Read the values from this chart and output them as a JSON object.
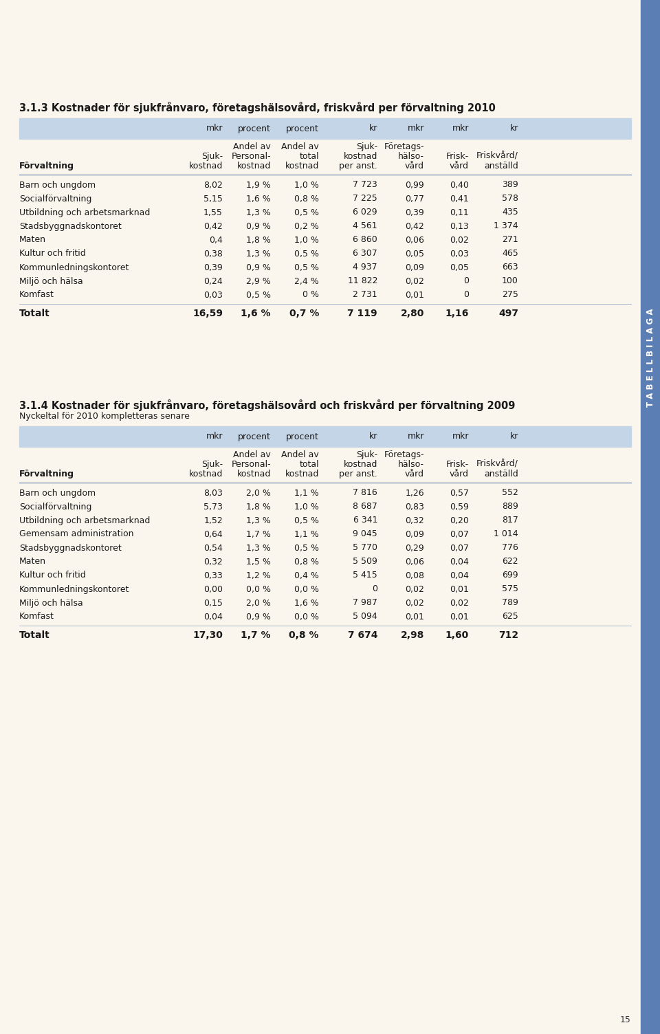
{
  "bg_color": "#FAF6EE",
  "sidebar_color": "#5B7EB5",
  "sidebar_text": "T A B E L L B I L A G A",
  "sidebar_text_color": "#FFFFFF",
  "page_number": "15",
  "table1_title": "3.1.3 Kostnader för sjukfrånvaro, företagshälsovård, friskvård per förvaltning 2010",
  "table1_header_bg": "#C5D5E8",
  "table1_col_units": [
    "mkr",
    "procent",
    "procent",
    "kr",
    "mkr",
    "mkr",
    "kr"
  ],
  "table1_col_sub1": [
    "",
    "Andel av",
    "Andel av",
    "Sjuk-",
    "Företags-",
    "",
    ""
  ],
  "table1_col_sub2": [
    "Sjuk-",
    "Personal-",
    "total",
    "kostnad",
    "hälso-",
    "Frisk-",
    "Friskvård/"
  ],
  "table1_col_sub3": [
    "kostnad",
    "kostnad",
    "kostnad",
    "per anst.",
    "vård",
    "vård",
    "anställd"
  ],
  "table1_col_label": "Förvaltning",
  "table1_rows": [
    [
      "Barn och ungdom",
      "8,02",
      "1,9 %",
      "1,0 %",
      "7 723",
      "0,99",
      "0,40",
      "389"
    ],
    [
      "Socialförvaltning",
      "5,15",
      "1,6 %",
      "0,8 %",
      "7 225",
      "0,77",
      "0,41",
      "578"
    ],
    [
      "Utbildning och arbetsmarknad",
      "1,55",
      "1,3 %",
      "0,5 %",
      "6 029",
      "0,39",
      "0,11",
      "435"
    ],
    [
      "Stadsbyggnadskontoret",
      "0,42",
      "0,9 %",
      "0,2 %",
      "4 561",
      "0,42",
      "0,13",
      "1 374"
    ],
    [
      "Maten",
      "0,4",
      "1,8 %",
      "1,0 %",
      "6 860",
      "0,06",
      "0,02",
      "271"
    ],
    [
      "Kultur och fritid",
      "0,38",
      "1,3 %",
      "0,5 %",
      "6 307",
      "0,05",
      "0,03",
      "465"
    ],
    [
      "Kommunledningskontoret",
      "0,39",
      "0,9 %",
      "0,5 %",
      "4 937",
      "0,09",
      "0,05",
      "663"
    ],
    [
      "Miljö och hälsa",
      "0,24",
      "2,9 %",
      "2,4 %",
      "11 822",
      "0,02",
      "0",
      "100"
    ],
    [
      "Komfast",
      "0,03",
      "0,5 %",
      "0 %",
      "2 731",
      "0,01",
      "0",
      "275"
    ]
  ],
  "table1_total": [
    "Totalt",
    "16,59",
    "1,6 %",
    "0,7 %",
    "7 119",
    "2,80",
    "1,16",
    "497"
  ],
  "table2_title": "3.1.4 Kostnader för sjukfrånvaro, företagshälsovård och friskvård per förvaltning 2009",
  "table2_subtitle": "Nyckeltal för 2010 kompletteras senare",
  "table2_col_units": [
    "mkr",
    "procent",
    "procent",
    "kr",
    "mkr",
    "mkr",
    "kr"
  ],
  "table2_col_sub1": [
    "",
    "Andel av",
    "Andel av",
    "Sjuk-",
    "Företags-",
    "",
    ""
  ],
  "table2_col_sub2": [
    "Sjuk-",
    "Personal-",
    "total",
    "kostnad",
    "hälso-",
    "Frisk-",
    "Friskvård/"
  ],
  "table2_col_sub3": [
    "kostnad",
    "kostnad",
    "kostnad",
    "per anst.",
    "vård",
    "vård",
    "anställd"
  ],
  "table2_col_label": "Förvaltning",
  "table2_rows": [
    [
      "Barn och ungdom",
      "8,03",
      "2,0 %",
      "1,1 %",
      "7 816",
      "1,26",
      "0,57",
      "552"
    ],
    [
      "Socialförvaltning",
      "5,73",
      "1,8 %",
      "1,0 %",
      "8 687",
      "0,83",
      "0,59",
      "889"
    ],
    [
      "Utbildning och arbetsmarknad",
      "1,52",
      "1,3 %",
      "0,5 %",
      "6 341",
      "0,32",
      "0,20",
      "817"
    ],
    [
      "Gemensam administration",
      "0,64",
      "1,7 %",
      "1,1 %",
      "9 045",
      "0,09",
      "0,07",
      "1 014"
    ],
    [
      "Stadsbyggnadskontoret",
      "0,54",
      "1,3 %",
      "0,5 %",
      "5 770",
      "0,29",
      "0,07",
      "776"
    ],
    [
      "Maten",
      "0,32",
      "1,5 %",
      "0,8 %",
      "5 509",
      "0,06",
      "0,04",
      "622"
    ],
    [
      "Kultur och fritid",
      "0,33",
      "1,2 %",
      "0,4 %",
      "5 415",
      "0,08",
      "0,04",
      "699"
    ],
    [
      "Kommunledningskontoret",
      "0,00",
      "0,0 %",
      "0,0 %",
      "0",
      "0,02",
      "0,01",
      "575"
    ],
    [
      "Miljö och hälsa",
      "0,15",
      "2,0 %",
      "1,6 %",
      "7 987",
      "0,02",
      "0,02",
      "789"
    ],
    [
      "Komfast",
      "0,04",
      "0,9 %",
      "0,0 %",
      "5 094",
      "0,01",
      "0,01",
      "625"
    ]
  ],
  "table2_total": [
    "Totalt",
    "17,30",
    "1,7 %",
    "0,8 %",
    "7 674",
    "2,98",
    "1,60",
    "712"
  ]
}
